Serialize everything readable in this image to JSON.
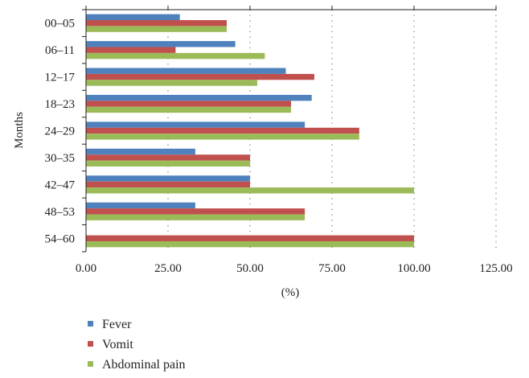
{
  "chart_data": {
    "type": "bar",
    "orientation": "horizontal",
    "categories": [
      "00–05",
      "06–11",
      "12–17",
      "18–23",
      "24–29",
      "30–35",
      "42–47",
      "48–53",
      "54–60"
    ],
    "series": [
      {
        "name": "Fever",
        "color": "#4f81bd",
        "values": [
          28.6,
          45.5,
          60.9,
          68.8,
          66.7,
          33.3,
          50.0,
          33.3,
          0
        ]
      },
      {
        "name": "Vomit",
        "color": "#c0504d",
        "values": [
          42.9,
          27.3,
          69.6,
          62.5,
          83.3,
          50.0,
          50.0,
          66.7,
          100.0
        ]
      },
      {
        "name": "Abdominal pain",
        "color": "#9bbb59",
        "values": [
          42.9,
          54.5,
          52.2,
          62.5,
          83.3,
          50.0,
          100.0,
          66.7,
          100.0
        ]
      }
    ],
    "title": "",
    "xlabel": "(%)",
    "ylabel": "Months",
    "xlim": [
      0,
      125
    ],
    "xticks": [
      0,
      25,
      50,
      75,
      100,
      125
    ],
    "xtick_labels": [
      "0.00",
      "25.00",
      "50.00",
      "75.00",
      "100.00",
      "125.00"
    ],
    "grid": "vertical dotted",
    "legend_position": "bottom"
  }
}
